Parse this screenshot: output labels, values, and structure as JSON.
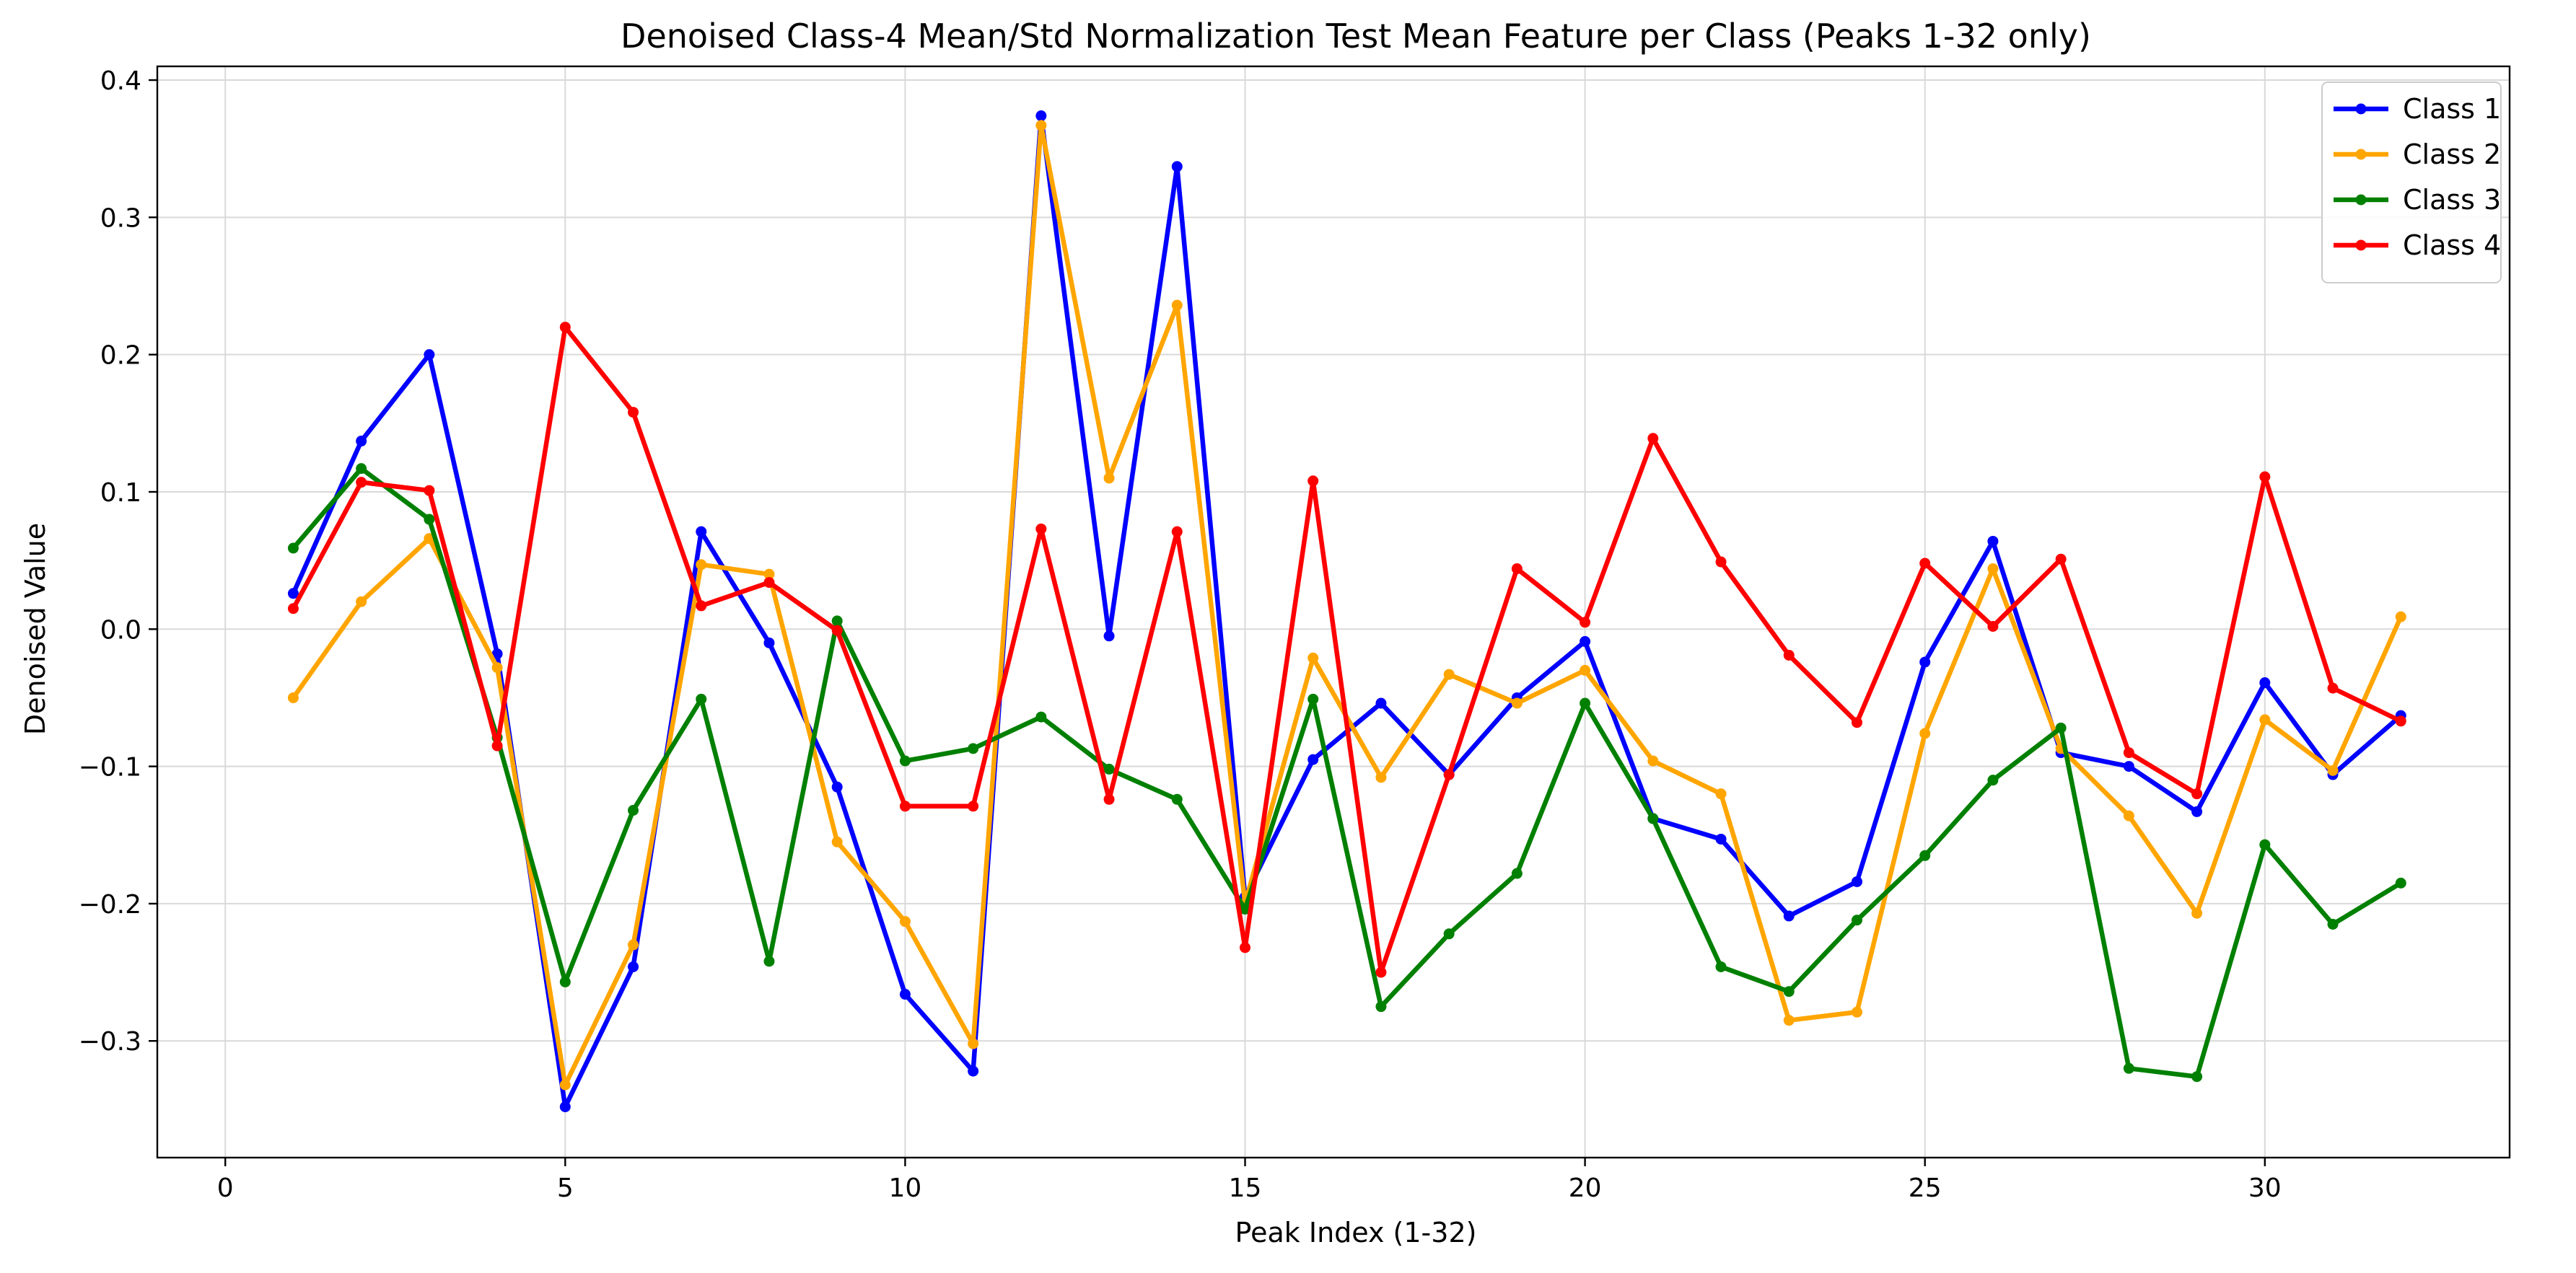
{
  "chart_data": {
    "type": "line",
    "title": "Denoised Class-4 Mean/Std Normalization Test Mean Feature per Class (Peaks 1-32 only)",
    "xlabel": "Peak Index (1-32)",
    "ylabel": "Denoised Value",
    "xlim": [
      -1,
      33.6
    ],
    "ylim": [
      -0.385,
      0.41
    ],
    "xticks": [
      0,
      5,
      10,
      15,
      20,
      25,
      30
    ],
    "yticks": [
      -0.3,
      -0.2,
      -0.1,
      0.0,
      0.1,
      0.2,
      0.3,
      0.4
    ],
    "ytick_labels": [
      "−0.3",
      "−0.2",
      "−0.1",
      "0.0",
      "0.1",
      "0.2",
      "0.3",
      "0.4"
    ],
    "grid": true,
    "legend_position": "top-right",
    "x": [
      1,
      2,
      3,
      4,
      5,
      6,
      7,
      8,
      9,
      10,
      11,
      12,
      13,
      14,
      15,
      16,
      17,
      18,
      19,
      20,
      21,
      22,
      23,
      24,
      25,
      26,
      27,
      28,
      29,
      30,
      31,
      32
    ],
    "series": [
      {
        "name": "Class 1",
        "color": "#0000ff",
        "values": [
          0.026,
          0.137,
          0.2,
          -0.018,
          -0.348,
          -0.246,
          0.071,
          -0.01,
          -0.115,
          -0.266,
          -0.322,
          0.374,
          -0.005,
          0.337,
          -0.195,
          -0.095,
          -0.054,
          -0.106,
          -0.05,
          -0.009,
          -0.138,
          -0.153,
          -0.209,
          -0.184,
          -0.024,
          0.064,
          -0.09,
          -0.1,
          -0.133,
          -0.039,
          -0.106,
          -0.063
        ]
      },
      {
        "name": "Class 2",
        "color": "#ffa500",
        "values": [
          -0.05,
          0.02,
          0.066,
          -0.028,
          -0.332,
          -0.23,
          0.047,
          0.04,
          -0.155,
          -0.213,
          -0.302,
          0.367,
          0.11,
          0.236,
          -0.2,
          -0.021,
          -0.108,
          -0.033,
          -0.054,
          -0.03,
          -0.096,
          -0.12,
          -0.285,
          -0.279,
          -0.076,
          0.044,
          -0.087,
          -0.136,
          -0.207,
          -0.066,
          -0.103,
          0.009
        ]
      },
      {
        "name": "Class 3",
        "color": "#008000",
        "values": [
          0.059,
          0.117,
          0.08,
          -0.079,
          -0.257,
          -0.132,
          -0.051,
          -0.242,
          0.006,
          -0.096,
          -0.087,
          -0.064,
          -0.102,
          -0.124,
          -0.204,
          -0.051,
          -0.275,
          -0.222,
          -0.178,
          -0.054,
          -0.138,
          -0.246,
          -0.264,
          -0.212,
          -0.165,
          -0.11,
          -0.072,
          -0.32,
          -0.326,
          -0.157,
          -0.215,
          -0.185
        ]
      },
      {
        "name": "Class 4",
        "color": "#ff0000",
        "values": [
          0.015,
          0.107,
          0.101,
          -0.085,
          0.22,
          0.158,
          0.017,
          0.034,
          -0.001,
          -0.129,
          -0.129,
          0.073,
          -0.124,
          0.071,
          -0.232,
          0.108,
          -0.25,
          -0.106,
          0.044,
          0.005,
          0.139,
          0.049,
          -0.019,
          -0.068,
          0.048,
          0.002,
          0.051,
          -0.09,
          -0.12,
          0.111,
          -0.043,
          -0.067
        ]
      }
    ]
  }
}
